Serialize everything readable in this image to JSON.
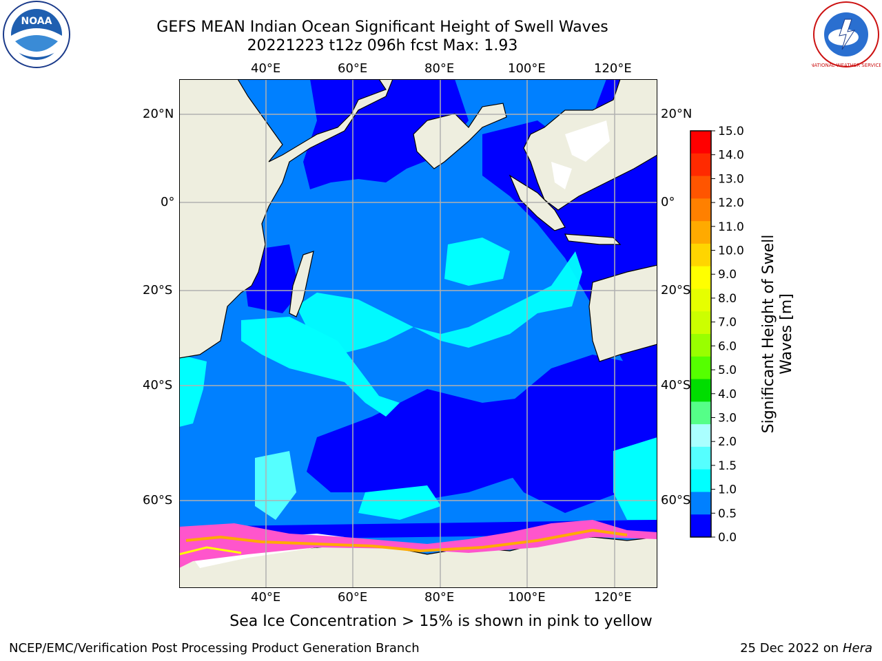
{
  "title_line1": "GEFS MEAN Indian Ocean Significant Height of Swell Waves",
  "title_line2": "20221223 t12z 096h fcst   Max: 1.93",
  "caption": "Sea Ice Concentration > 15% is shown in pink to yellow",
  "footer_left": "NCEP/EMC/Verification Post Processing Product Generation Branch",
  "footer_right_date": "25 Dec 2022 on",
  "footer_right_machine": "Hera",
  "logos": {
    "left": "NOAA",
    "right": "NATIONAL WEATHER SERVICE"
  },
  "axes": {
    "lon_labels": [
      "40°E",
      "60°E",
      "80°E",
      "100°E",
      "120°E"
    ],
    "lat_labels": [
      "20°N",
      "0°",
      "20°S",
      "40°S",
      "60°S"
    ]
  },
  "colorbar": {
    "label_line1": "Significant Height of Swell",
    "label_line2": "Waves [m]",
    "ticks": [
      "15.0",
      "14.0",
      "13.0",
      "12.0",
      "11.0",
      "10.0",
      "9.0",
      "8.0",
      "7.0",
      "6.0",
      "5.0",
      "4.0",
      "3.0",
      "2.0",
      "1.5",
      "1.0",
      "0.5",
      "0.0"
    ],
    "colors": [
      "#ff0000",
      "#ff2a00",
      "#ff5500",
      "#ff8000",
      "#ffaa00",
      "#ffd500",
      "#ffff00",
      "#e6ff00",
      "#ccff00",
      "#99ff00",
      "#55ff00",
      "#00dd00",
      "#55ff88",
      "#aaffff",
      "#55ffff",
      "#00ffff",
      "#0080ff",
      "#0000ff"
    ]
  },
  "colors": {
    "land": "#eeeedf",
    "grid": "#b0b0b0"
  }
}
